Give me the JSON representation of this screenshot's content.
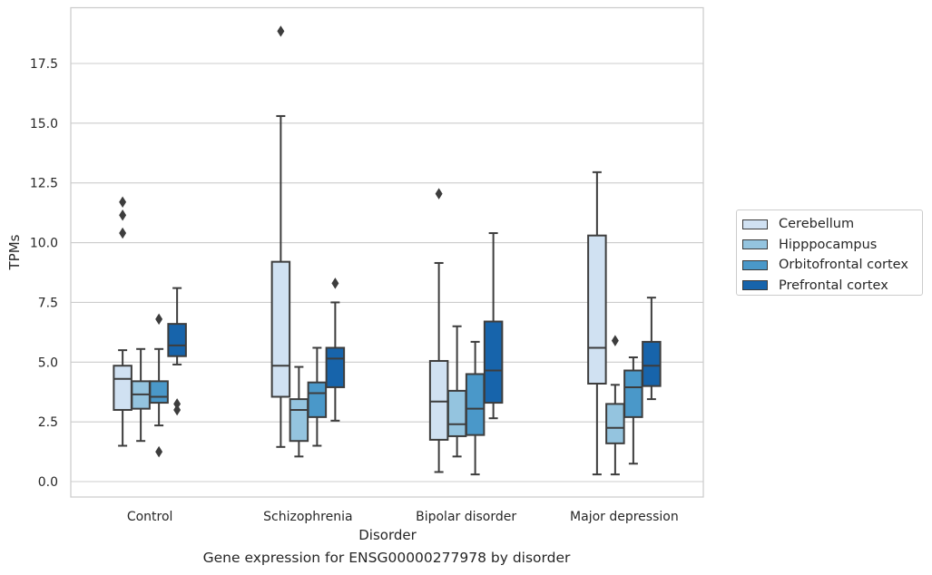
{
  "chart_data": {
    "type": "box",
    "xlabel": "Disorder",
    "ylabel": "TPMs",
    "caption": "Gene expression for ENSG00000277978 by disorder",
    "ylim": [
      -0.6,
      19.7
    ],
    "yticks": [
      0.0,
      2.5,
      5.0,
      7.5,
      10.0,
      12.5,
      15.0,
      17.5
    ],
    "ytick_labels": [
      "0.0",
      "2.5",
      "5.0",
      "7.5",
      "10.0",
      "12.5",
      "15.0",
      "17.5"
    ],
    "grid": "horizontal",
    "legend_placement": "right",
    "categories": [
      "Control",
      "Schizophrenia",
      "Bipolar disorder",
      "Major depression"
    ],
    "series": [
      {
        "name": "Cerebellum",
        "color": "#d0e1f2",
        "boxes": [
          {
            "whislo": 1.5,
            "q1": 3.0,
            "med": 4.3,
            "q3": 4.85,
            "whishi": 5.5,
            "fliers": [
              10.4,
              11.15,
              11.7
            ]
          },
          {
            "whislo": 1.45,
            "q1": 3.55,
            "med": 4.85,
            "q3": 9.2,
            "whishi": 15.3,
            "fliers": [
              18.85
            ]
          },
          {
            "whislo": 0.4,
            "q1": 1.75,
            "med": 3.35,
            "q3": 5.05,
            "whishi": 9.15,
            "fliers": [
              12.05
            ]
          },
          {
            "whislo": 0.3,
            "q1": 4.1,
            "med": 5.6,
            "q3": 10.3,
            "whishi": 12.95,
            "fliers": []
          }
        ]
      },
      {
        "name": "Hipppocampus",
        "color": "#94c4df",
        "boxes": [
          {
            "whislo": 1.7,
            "q1": 3.05,
            "med": 3.65,
            "q3": 4.2,
            "whishi": 5.55,
            "fliers": []
          },
          {
            "whislo": 1.05,
            "q1": 1.7,
            "med": 3.0,
            "q3": 3.45,
            "whishi": 4.8,
            "fliers": []
          },
          {
            "whislo": 1.05,
            "q1": 1.9,
            "med": 2.4,
            "q3": 3.8,
            "whishi": 6.5,
            "fliers": []
          },
          {
            "whislo": 0.3,
            "q1": 1.6,
            "med": 2.25,
            "q3": 3.25,
            "whishi": 4.05,
            "fliers": [
              5.9
            ]
          }
        ]
      },
      {
        "name": "Orbitofrontal cortex",
        "color": "#4a98c9",
        "boxes": [
          {
            "whislo": 2.35,
            "q1": 3.3,
            "med": 3.55,
            "q3": 4.2,
            "whishi": 5.55,
            "fliers": [
              1.25,
              6.8
            ]
          },
          {
            "whislo": 1.5,
            "q1": 2.7,
            "med": 3.7,
            "q3": 4.15,
            "whishi": 5.6,
            "fliers": []
          },
          {
            "whislo": 0.3,
            "q1": 1.95,
            "med": 3.05,
            "q3": 4.5,
            "whishi": 5.85,
            "fliers": []
          },
          {
            "whislo": 0.75,
            "q1": 2.7,
            "med": 3.95,
            "q3": 4.65,
            "whishi": 5.2,
            "fliers": []
          }
        ]
      },
      {
        "name": "Prefrontal cortex",
        "color": "#1764ab",
        "boxes": [
          {
            "whislo": 4.9,
            "q1": 5.25,
            "med": 5.7,
            "q3": 6.6,
            "whishi": 8.1,
            "fliers": [
              3.0,
              3.25
            ]
          },
          {
            "whislo": 2.55,
            "q1": 3.95,
            "med": 5.15,
            "q3": 5.6,
            "whishi": 7.5,
            "fliers": [
              8.3
            ]
          },
          {
            "whislo": 2.65,
            "q1": 3.3,
            "med": 4.65,
            "q3": 6.7,
            "whishi": 10.4,
            "fliers": []
          },
          {
            "whislo": 3.45,
            "q1": 4.0,
            "med": 4.85,
            "q3": 5.85,
            "whishi": 7.7,
            "fliers": []
          }
        ]
      }
    ]
  }
}
